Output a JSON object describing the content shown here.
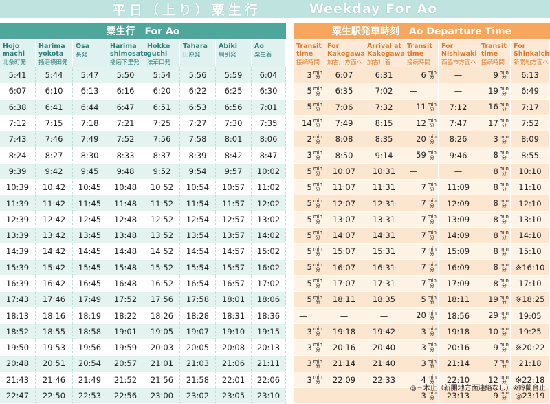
{
  "title": {
    "jp": "平日（上り）粟生行",
    "en": "Weekday For Ao"
  },
  "left_header": "粟生行　For Ao",
  "right_header": "粟生駅発車時刻　Ao Departure Time",
  "left_columns": [
    {
      "en": "Hojo machi",
      "jp": "北条町発"
    },
    {
      "en": "Harima yokota",
      "jp": "播磨横田発"
    },
    {
      "en": "Osa",
      "jp": "長発"
    },
    {
      "en": "Harima shimosato",
      "jp": "播磨下里発"
    },
    {
      "en": "Hokke guchi",
      "jp": "法華口発"
    },
    {
      "en": "Tahara",
      "jp": "田原発"
    },
    {
      "en": "Abiki",
      "jp": "網引発"
    },
    {
      "en": "Ao",
      "jp": "粟生着"
    }
  ],
  "right_columns": [
    {
      "en": "Transit time",
      "jp": "接続時間"
    },
    {
      "en": "For Kakogawa",
      "jp": "加古川方面へ"
    },
    {
      "en": "Arrival at Kakogawa",
      "jp": "加古川着"
    },
    {
      "en": "Transit time",
      "jp": "接続時間"
    },
    {
      "en": "For Nishiwaki",
      "jp": "西脇市方面へ"
    },
    {
      "en": "Transit time",
      "jp": "接続時間"
    },
    {
      "en": "For Shinkaichi",
      "jp": "新開地方面へ"
    }
  ],
  "unit_min": "min",
  "unit_fen": "分",
  "left_rows": [
    [
      "5:41",
      "5:44",
      "5:47",
      "5:50",
      "5:54",
      "5:56",
      "5:59",
      "6:04"
    ],
    [
      "6:07",
      "6:10",
      "6:13",
      "6:16",
      "6:20",
      "6:22",
      "6:25",
      "6:30"
    ],
    [
      "6:38",
      "6:41",
      "6:44",
      "6:47",
      "6:51",
      "6:53",
      "6:56",
      "7:01"
    ],
    [
      "7:12",
      "7:15",
      "7:18",
      "7:21",
      "7:25",
      "7:27",
      "7:30",
      "7:35"
    ],
    [
      "7:43",
      "7:46",
      "7:49",
      "7:52",
      "7:56",
      "7:58",
      "8:01",
      "8:06"
    ],
    [
      "8:24",
      "8:27",
      "8:30",
      "8:33",
      "8:37",
      "8:39",
      "8:42",
      "8:47"
    ],
    [
      "9:39",
      "9:42",
      "9:45",
      "9:48",
      "9:52",
      "9:54",
      "9:57",
      "10:02"
    ],
    [
      "10:39",
      "10:42",
      "10:45",
      "10:48",
      "10:52",
      "10:54",
      "10:57",
      "11:02"
    ],
    [
      "11:39",
      "11:42",
      "11:45",
      "11:48",
      "11:52",
      "11:54",
      "11:57",
      "12:02"
    ],
    [
      "12:39",
      "12:42",
      "12:45",
      "12:48",
      "12:52",
      "12:54",
      "12:57",
      "13:02"
    ],
    [
      "13:39",
      "13:42",
      "13:45",
      "13:48",
      "13:52",
      "13:54",
      "13:57",
      "14:02"
    ],
    [
      "14:39",
      "14:42",
      "14:45",
      "14:48",
      "14:52",
      "14:54",
      "14:57",
      "15:02"
    ],
    [
      "15:39",
      "15:42",
      "15:45",
      "15:48",
      "15:52",
      "15:54",
      "15:57",
      "16:02"
    ],
    [
      "16:39",
      "16:42",
      "16:45",
      "16:48",
      "16:52",
      "16:54",
      "16:57",
      "17:02"
    ],
    [
      "17:43",
      "17:46",
      "17:49",
      "17:52",
      "17:56",
      "17:58",
      "18:01",
      "18:06"
    ],
    [
      "18:13",
      "18:16",
      "18:19",
      "18:22",
      "18:26",
      "18:28",
      "18:31",
      "18:36"
    ],
    [
      "18:52",
      "18:55",
      "18:58",
      "19:01",
      "19:05",
      "19:07",
      "19:10",
      "19:15"
    ],
    [
      "19:50",
      "19:53",
      "19:56",
      "19:59",
      "20:03",
      "20:05",
      "20:08",
      "20:13"
    ],
    [
      "20:48",
      "20:51",
      "20:54",
      "20:57",
      "21:01",
      "21:03",
      "21:06",
      "21:11"
    ],
    [
      "21:43",
      "21:46",
      "21:49",
      "21:52",
      "21:56",
      "21:58",
      "22:01",
      "22:06"
    ],
    [
      "22:47",
      "22:50",
      "22:53",
      "22:56",
      "23:00",
      "23:02",
      "23:05",
      "23:10"
    ]
  ],
  "right_rows": [
    [
      "3",
      "6:07",
      "6:31",
      "6",
      "—",
      "9",
      "6:13"
    ],
    [
      "5",
      "6:35",
      "7:02",
      "—",
      "—",
      "19",
      "6:49"
    ],
    [
      "5",
      "7:06",
      "7:32",
      "11",
      "7:12",
      "16",
      "7:17"
    ],
    [
      "14",
      "7:49",
      "8:15",
      "12",
      "7:47",
      "17",
      "7:52"
    ],
    [
      "2",
      "8:08",
      "8:35",
      "20",
      "8:26",
      "3",
      "8:09"
    ],
    [
      "3",
      "8:50",
      "9:14",
      "59",
      "9:46",
      "8",
      "8:55"
    ],
    [
      "5",
      "10:07",
      "10:31",
      "—",
      "—",
      "8",
      "10:10"
    ],
    [
      "5",
      "11:07",
      "11:31",
      "7",
      "11:09",
      "8",
      "11:10"
    ],
    [
      "5",
      "12:07",
      "12:31",
      "7",
      "12:09",
      "8",
      "12:10"
    ],
    [
      "5",
      "13:07",
      "13:31",
      "7",
      "13:09",
      "8",
      "13:10"
    ],
    [
      "5",
      "14:07",
      "14:31",
      "7",
      "14:09",
      "8",
      "14:10"
    ],
    [
      "5",
      "15:07",
      "15:31",
      "7",
      "15:09",
      "8",
      "15:10"
    ],
    [
      "5",
      "16:07",
      "16:31",
      "7",
      "16:09",
      "8",
      "※16:10"
    ],
    [
      "5",
      "17:07",
      "17:31",
      "7",
      "17:09",
      "8",
      "17:10"
    ],
    [
      "5",
      "18:11",
      "18:35",
      "5",
      "18:11",
      "19",
      "※18:25"
    ],
    [
      "—",
      "—",
      "—",
      "20",
      "18:56",
      "29",
      "19:05"
    ],
    [
      "3",
      "19:18",
      "19:42",
      "3",
      "19:18",
      "10",
      "19:25"
    ],
    [
      "3",
      "20:16",
      "20:40",
      "3",
      "20:16",
      "9",
      "※20:22"
    ],
    [
      "3",
      "21:14",
      "21:40",
      "3",
      "21:14",
      "7",
      "21:18"
    ],
    [
      "3",
      "22:09",
      "22:33",
      "4",
      "22:10",
      "12",
      "※22:18"
    ],
    [
      "—",
      "—",
      "—",
      "3",
      "23:13",
      "9",
      "◎23:19"
    ]
  ],
  "footnote": "◎三木止（新開地方面連絡なし）※鈴蘭台止"
}
